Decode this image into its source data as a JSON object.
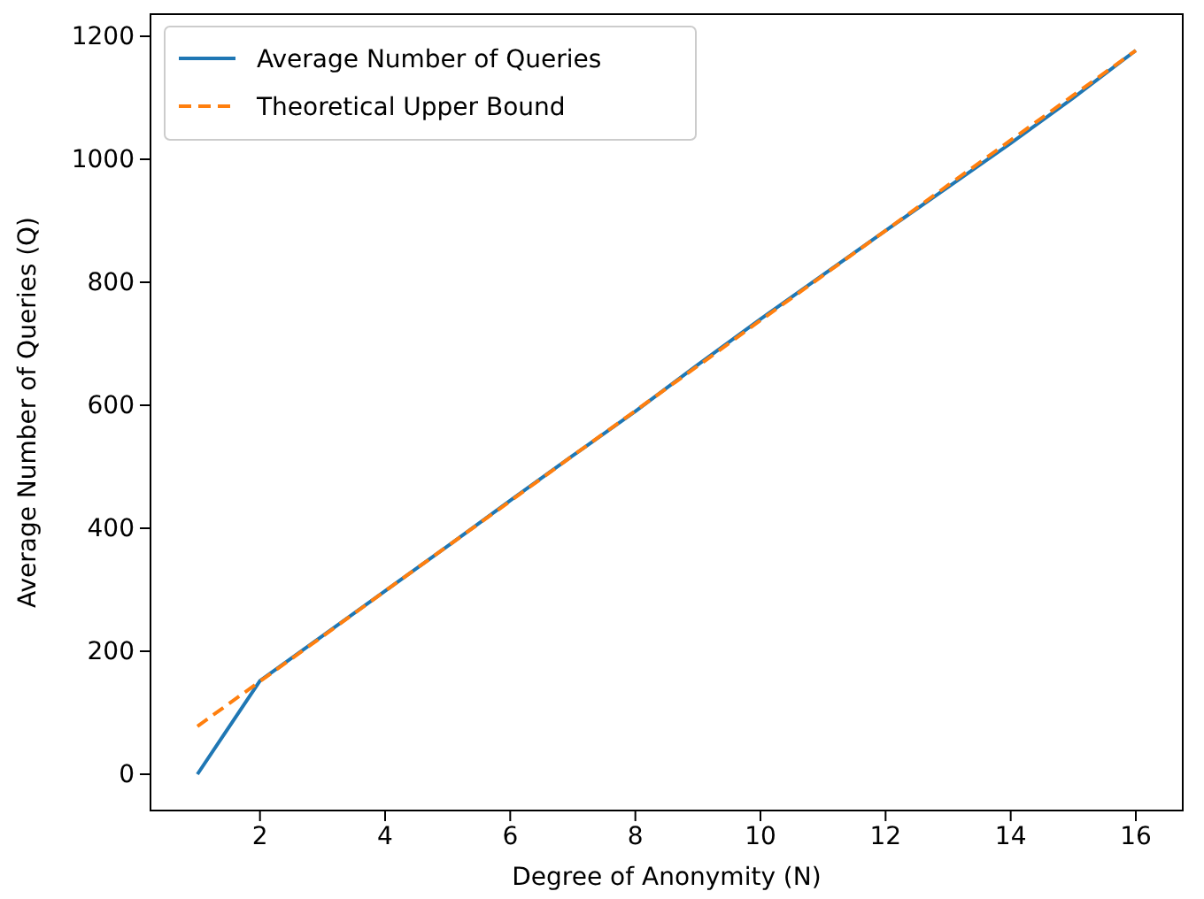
{
  "chart_data": {
    "type": "line",
    "xlabel": "Degree of Anonymity (N)",
    "ylabel": "Average Number of Queries (Q)",
    "x": [
      1,
      2,
      3,
      4,
      5,
      6,
      7,
      8,
      9,
      10,
      11,
      12,
      13,
      14,
      15,
      16
    ],
    "series": [
      {
        "name": "Average Number of Queries",
        "color": "#1f77b4",
        "line_style": "solid",
        "values": [
          0,
          152,
          225,
          298,
          371,
          445,
          518,
          590,
          666,
          740,
          812,
          884,
          955,
          1026,
          1100,
          1177
        ]
      },
      {
        "name": "Theoretical Upper Bound",
        "color": "#ff7f0e",
        "line_style": "dashed",
        "values": [
          78,
          151,
          224,
          298,
          371,
          444,
          518,
          591,
          664,
          738,
          811,
          884,
          958,
          1031,
          1104,
          1177
        ]
      }
    ],
    "xlim": [
      0.25,
      16.75
    ],
    "xticks": [
      2,
      4,
      6,
      8,
      10,
      12,
      14,
      16
    ],
    "ylim": [
      -59,
      1236
    ],
    "yticks": [
      0,
      200,
      400,
      600,
      800,
      1000,
      1200
    ],
    "legend": "top left",
    "grid": false
  }
}
